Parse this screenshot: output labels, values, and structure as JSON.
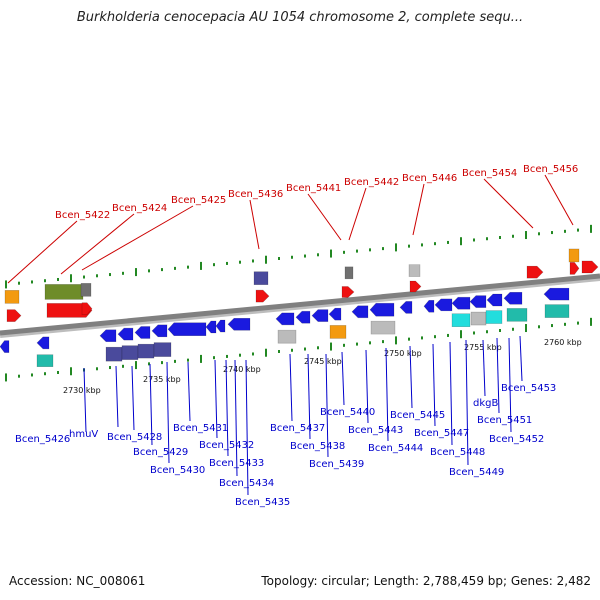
{
  "title": "Burkholderia cenocepacia AU 1054 chromosome 2, complete sequ...",
  "footer": {
    "accession": "Accession: NC_008061",
    "summary": "Topology: circular; Length: 2,788,459 bp; Genes: 2,482"
  },
  "colors": {
    "top_label": "#cc0000",
    "bottom_label": "#0000cc",
    "backbone": "#808080",
    "tick_dot": "#228822"
  },
  "scale_labels": [
    "2730 kbp",
    "2735 kbp",
    "2740 kbp",
    "2745 kbp",
    "2750 kbp",
    "2755 kbp",
    "2760 kbp"
  ],
  "top_labels": [
    "Bcen_5422",
    "Bcen_5424",
    "Bcen_5425",
    "Bcen_5436",
    "Bcen_5441",
    "Bcen_5442",
    "Bcen_5446",
    "Bcen_5454",
    "Bcen_5456"
  ],
  "bottom_labels": [
    "Bcen_5426",
    "hmuV",
    "Bcen_5428",
    "Bcen_5429",
    "Bcen_5430",
    "Bcen_5431",
    "Bcen_5432",
    "Bcen_5433",
    "Bcen_5434",
    "Bcen_5435",
    "Bcen_5437",
    "Bcen_5438",
    "Bcen_5439",
    "Bcen_5440",
    "Bcen_5443",
    "Bcen_5444",
    "Bcen_5445",
    "Bcen_5447",
    "Bcen_5448",
    "Bcen_5449",
    "dkgB",
    "Bcen_5451",
    "Bcen_5452",
    "Bcen_5453"
  ]
}
